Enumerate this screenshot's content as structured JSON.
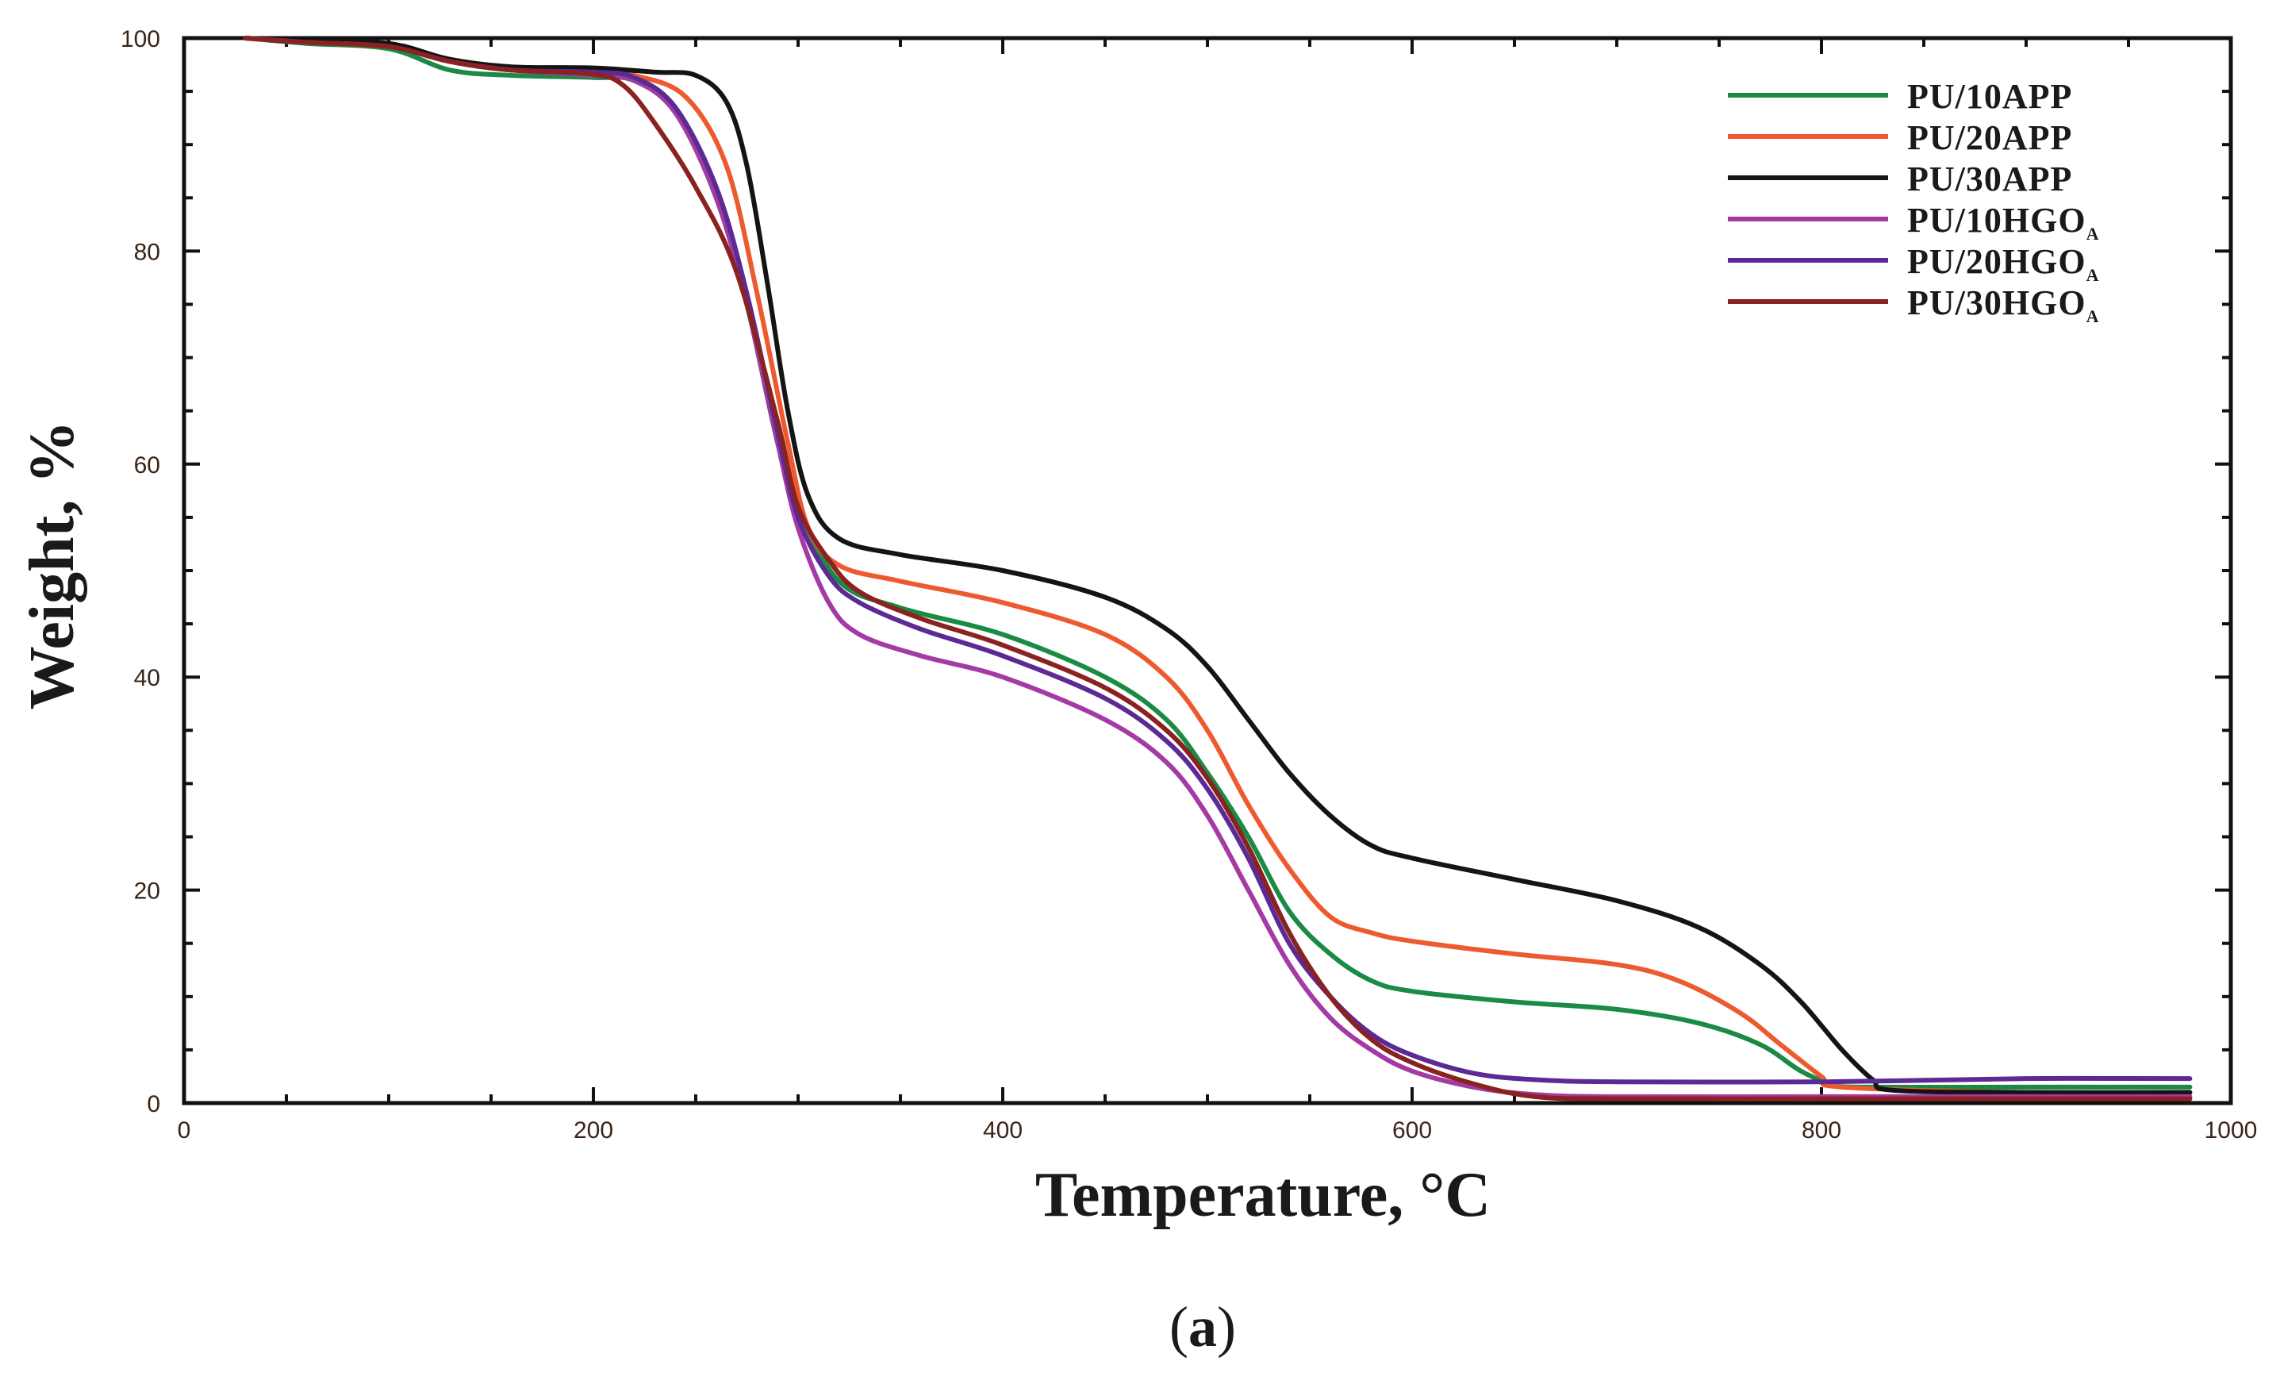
{
  "chart_data": {
    "type": "line",
    "title": "",
    "xlabel": "Temperature, °C",
    "ylabel": "Weight, %",
    "xlim": [
      0,
      1000
    ],
    "ylim": [
      0,
      100
    ],
    "xticks": [
      0,
      200,
      400,
      600,
      800,
      1000
    ],
    "yticks": [
      0,
      20,
      40,
      60,
      80,
      100
    ],
    "grid": false,
    "legend_position": "top-right",
    "caption_text": "a",
    "caption_open": "(",
    "caption_close": ")",
    "series": [
      {
        "name": "PU/10APP",
        "base": "PU/10APP",
        "sub": "",
        "color": "#1a8a45",
        "x": [
          30,
          60,
          100,
          130,
          160,
          200,
          220,
          240,
          260,
          275,
          290,
          300,
          320,
          350,
          400,
          450,
          480,
          500,
          520,
          540,
          560,
          580,
          600,
          650,
          700,
          740,
          770,
          790,
          805,
          820,
          900,
          980
        ],
        "y": [
          100,
          99.5,
          99,
          97,
          96.5,
          96.3,
          96,
          93,
          85,
          75,
          62,
          56,
          49,
          46.5,
          44,
          40,
          36,
          31,
          25,
          18,
          14,
          11.5,
          10.5,
          9.5,
          8.8,
          7.5,
          5.5,
          3,
          1.8,
          1.5,
          1.5,
          1.5
        ]
      },
      {
        "name": "PU/20APP",
        "base": "PU/20APP",
        "sub": "",
        "color": "#ee5a30",
        "x": [
          30,
          60,
          100,
          130,
          160,
          200,
          220,
          245,
          265,
          280,
          295,
          305,
          320,
          350,
          400,
          450,
          480,
          500,
          520,
          540,
          560,
          580,
          600,
          650,
          700,
          730,
          760,
          780,
          800,
          810,
          900,
          980
        ],
        "y": [
          100,
          99.6,
          99.2,
          98,
          97.2,
          97,
          96.5,
          94.5,
          88,
          76,
          62,
          54,
          50.5,
          49,
          47,
          44,
          40,
          35,
          28,
          22,
          17.5,
          16,
          15.2,
          14,
          13,
          11.5,
          8.5,
          5.5,
          2.5,
          1.5,
          1,
          1
        ]
      },
      {
        "name": "PU/30APP",
        "base": "PU/30APP",
        "sub": "",
        "color": "#141414",
        "x": [
          30,
          60,
          100,
          130,
          160,
          200,
          230,
          250,
          265,
          275,
          285,
          295,
          305,
          320,
          350,
          400,
          450,
          480,
          500,
          520,
          540,
          560,
          580,
          600,
          650,
          700,
          740,
          770,
          790,
          810,
          825,
          835,
          900,
          980
        ],
        "y": [
          100,
          99.7,
          99.5,
          98,
          97.3,
          97.2,
          96.8,
          96.5,
          94,
          88,
          77,
          65,
          57,
          53,
          51.5,
          50,
          47.5,
          44.5,
          41,
          36,
          31,
          27,
          24.2,
          23,
          21,
          19,
          16.5,
          13,
          9.5,
          5,
          2.2,
          1.2,
          1,
          1
        ]
      },
      {
        "name": "PU/10HGOA",
        "base": "PU/10HGO",
        "sub": "A",
        "color": "#a43aa4",
        "x": [
          30,
          60,
          100,
          130,
          160,
          200,
          220,
          240,
          260,
          275,
          290,
          300,
          315,
          330,
          360,
          400,
          450,
          480,
          500,
          520,
          540,
          560,
          580,
          600,
          630,
          660,
          700,
          800,
          900,
          980
        ],
        "y": [
          100,
          99.6,
          99.2,
          97.8,
          97,
          96.5,
          96,
          93,
          85,
          75,
          62,
          54,
          47,
          44,
          42,
          40,
          36,
          32,
          27,
          20,
          13,
          8,
          5,
          3,
          1.5,
          0.8,
          0.6,
          0.6,
          0.6,
          0.6
        ]
      },
      {
        "name": "PU/20HGOA",
        "base": "PU/20HGO",
        "sub": "A",
        "color": "#5c2a94",
        "x": [
          30,
          60,
          100,
          130,
          160,
          200,
          220,
          240,
          260,
          275,
          290,
          300,
          315,
          330,
          360,
          400,
          450,
          480,
          500,
          520,
          540,
          560,
          580,
          600,
          630,
          660,
          700,
          800,
          900,
          980
        ],
        "y": [
          100,
          99.6,
          99.2,
          97.8,
          97,
          96.8,
          96.3,
          93.5,
          86,
          76,
          63,
          55,
          49.5,
          47,
          44.5,
          42,
          38,
          34,
          29.5,
          23,
          15,
          10,
          6.5,
          4.5,
          2.8,
          2.2,
          2,
          2,
          2.3,
          2.3
        ]
      },
      {
        "name": "PU/30HGOA",
        "base": "PU/30HGO",
        "sub": "A",
        "color": "#8a2222",
        "x": [
          30,
          60,
          100,
          130,
          160,
          200,
          215,
          230,
          250,
          270,
          290,
          300,
          315,
          330,
          360,
          400,
          450,
          480,
          500,
          520,
          540,
          560,
          580,
          600,
          630,
          660,
          700,
          800,
          900,
          980
        ],
        "y": [
          100,
          99.6,
          99.2,
          97.8,
          97,
          96.6,
          95.5,
          92,
          86,
          78,
          64,
          56,
          51,
          48,
          45.5,
          43,
          39,
          35,
          30.5,
          24,
          16,
          10,
          6,
          3.8,
          1.8,
          0.6,
          0.4,
          0.4,
          0.4,
          0.4
        ]
      }
    ]
  }
}
